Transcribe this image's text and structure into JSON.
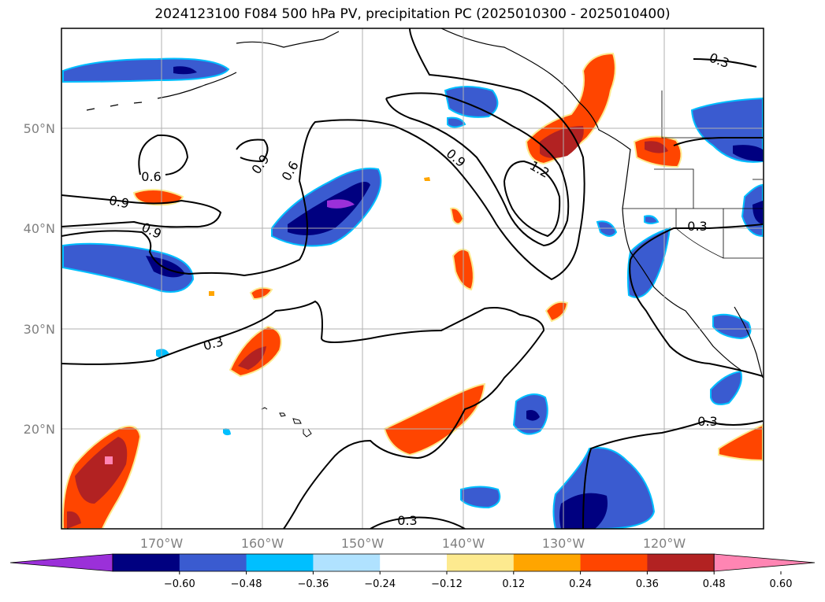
{
  "title": "2024123100 F084 500 hPa PV, precipitation PC (2025010300 - 2025010400)",
  "map": {
    "lat_labels": [
      "50°N",
      "40°N",
      "30°N",
      "20°N"
    ],
    "lon_labels": [
      "170°W",
      "160°W",
      "150°W",
      "140°W",
      "130°W",
      "120°W"
    ],
    "contour_labels": [
      "0.6",
      "0.9",
      "0.9",
      "0.9",
      "0.6",
      "0.9",
      "1.2",
      "0.3",
      "0.3",
      "0.3",
      "0.3",
      "0.3"
    ]
  },
  "colorbar": {
    "tick_labels": [
      "−0.60",
      "−0.48",
      "−0.36",
      "−0.24",
      "−0.12",
      "0.12",
      "0.24",
      "0.36",
      "0.48",
      "0.60"
    ],
    "colors": [
      "#9b30d9",
      "#000080",
      "#3a5bd0",
      "#00bfff",
      "#b0e2ff",
      "#ffffff",
      "#fdea8f",
      "#ffa500",
      "#ff4500",
      "#b22222",
      "#ff85b3"
    ]
  }
}
